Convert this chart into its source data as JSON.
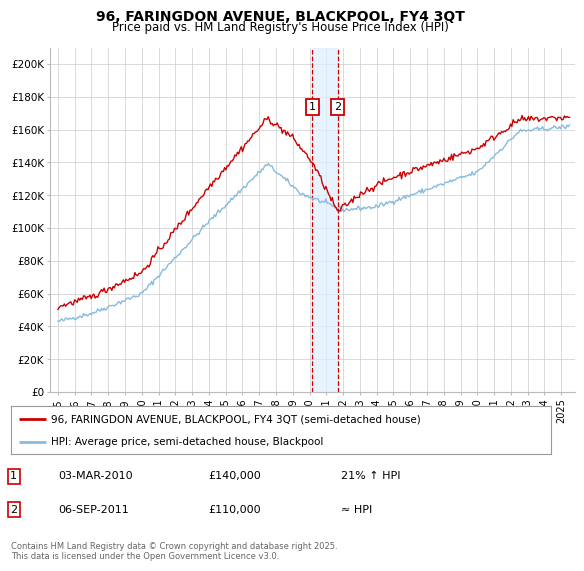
{
  "title": "96, FARINGDON AVENUE, BLACKPOOL, FY4 3QT",
  "subtitle": "Price paid vs. HM Land Registry's House Price Index (HPI)",
  "legend_line1": "96, FARINGDON AVENUE, BLACKPOOL, FY4 3QT (semi-detached house)",
  "legend_line2": "HPI: Average price, semi-detached house, Blackpool",
  "footnote": "Contains HM Land Registry data © Crown copyright and database right 2025.\nThis data is licensed under the Open Government Licence v3.0.",
  "transaction1_date": "03-MAR-2010",
  "transaction1_price": "£140,000",
  "transaction1_hpi": "21% ↑ HPI",
  "transaction2_date": "06-SEP-2011",
  "transaction2_price": "£110,000",
  "transaction2_hpi": "≈ HPI",
  "xmin": 1994.5,
  "xmax": 2025.8,
  "ymin": 0,
  "ymax": 210000,
  "yticks": [
    0,
    20000,
    40000,
    60000,
    80000,
    100000,
    120000,
    140000,
    160000,
    180000,
    200000
  ],
  "ylabels": [
    "£0",
    "£20K",
    "£40K",
    "£60K",
    "£80K",
    "£100K",
    "£120K",
    "£140K",
    "£160K",
    "£180K",
    "£200K"
  ],
  "transaction1_x": 2010.17,
  "transaction2_x": 2011.67,
  "line_color_red": "#cc0000",
  "line_color_blue": "#88bbdd",
  "bg_color": "#ffffff",
  "grid_color": "#cccccc",
  "vband_color": "#ddeeff",
  "vline_color": "#cc0000",
  "marker_box_color": "#cc0000",
  "table_box_color": "#cc0000"
}
